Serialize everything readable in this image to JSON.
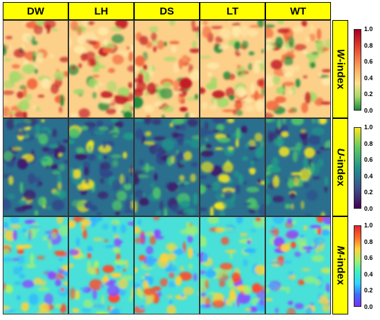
{
  "columns": [
    "DW",
    "LH",
    "DS",
    "LT",
    "WT"
  ],
  "rows": [
    {
      "id": "w",
      "label_italic": "W",
      "label_rest": "-index",
      "colors": [
        "#1a8a3c",
        "#a6d96a",
        "#fee08b",
        "#fdae61",
        "#f46d43",
        "#d73027",
        "#a50026"
      ],
      "base": "#fdd08a",
      "spots": [
        "#fee9a8",
        "#a6d96a",
        "#f26a3f",
        "#1a8a3c",
        "#c41f27"
      ]
    },
    {
      "id": "u",
      "label_italic": "U",
      "label_rest": "-index",
      "colors": [
        "#440154",
        "#3b528b",
        "#21918c",
        "#5ec962",
        "#fde725"
      ],
      "base": "#2a6f8e",
      "spots": [
        "#3e1a6a",
        "#1f9a8a",
        "#4cc26c",
        "#f4e61e",
        "#2f4a8a"
      ]
    },
    {
      "id": "m",
      "label_italic": "M",
      "label_rest": "-index",
      "colors": [
        "#7b2ff7",
        "#3b6cff",
        "#2fd6ff",
        "#3df0c0",
        "#a8f06a",
        "#ffd23a",
        "#ff6a2a",
        "#e8242a"
      ],
      "base": "#48e0d8",
      "spots": [
        "#2fb6ff",
        "#8a4bff",
        "#a8f06a",
        "#ff4a2a",
        "#ffd23a"
      ]
    }
  ],
  "colorbar_ticks": [
    "1.0",
    "0.8",
    "0.6",
    "0.4",
    "0.2",
    "0.0"
  ]
}
